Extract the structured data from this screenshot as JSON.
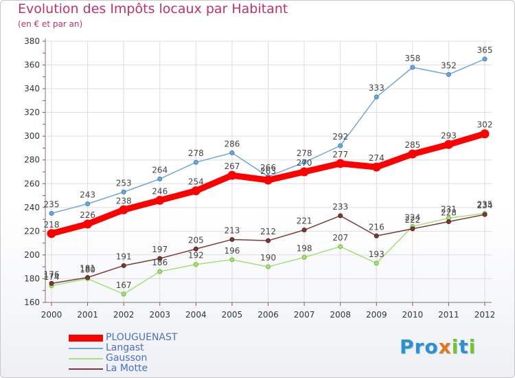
{
  "header": {
    "title": "Evolution des Impôts locaux par Habitant",
    "subtitle": "(en € et par an)"
  },
  "logo": {
    "text": "Proxiti",
    "colors": [
      "#2f8fcf",
      "#e0781e",
      "#7bbf2a"
    ]
  },
  "chart_data": {
    "type": "line",
    "title": "Evolution des Impôts locaux par Habitant",
    "subtitle": "(en € et par an)",
    "xlabel": "",
    "ylabel": "",
    "x": [
      "2000",
      "2001",
      "2002",
      "2003",
      "2004",
      "2005",
      "2006",
      "2007",
      "2008",
      "2009",
      "2010",
      "2011",
      "2012"
    ],
    "ylim": [
      160,
      380
    ],
    "yticks": [
      160,
      180,
      200,
      220,
      240,
      260,
      280,
      300,
      320,
      340,
      360,
      380
    ],
    "grid": true,
    "legend_position": "bottom-left",
    "series": [
      {
        "name": "PLOUGUENAST",
        "color": "#ff0000",
        "emphasis": true,
        "values": [
          218,
          226,
          238,
          246,
          254,
          267,
          263,
          270,
          277,
          274,
          285,
          293,
          302
        ]
      },
      {
        "name": "Langast",
        "color": "#6fa7d8",
        "values": [
          235,
          243,
          253,
          264,
          278,
          286,
          266,
          278,
          292,
          333,
          358,
          352,
          365
        ]
      },
      {
        "name": "Gausson",
        "color": "#a6de7c",
        "values": [
          174,
          180,
          167,
          186,
          192,
          196,
          190,
          198,
          207,
          193,
          224,
          231,
          235
        ]
      },
      {
        "name": "La Motte",
        "color": "#7a3a3a",
        "values": [
          176,
          181,
          191,
          197,
          205,
          213,
          212,
          221,
          233,
          216,
          222,
          228,
          234
        ]
      }
    ]
  }
}
